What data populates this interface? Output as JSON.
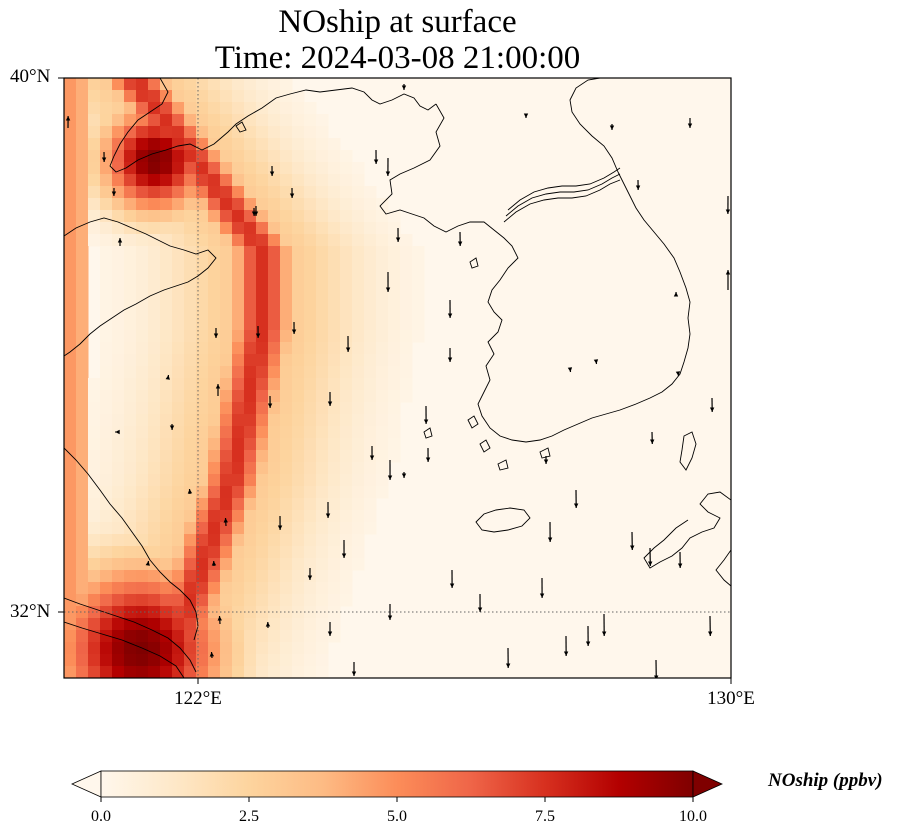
{
  "title": {
    "line1": "NOship at surface",
    "line2": "Time: 2024-03-08 21:00:00"
  },
  "axes": {
    "lat_ticks": [
      "40°N",
      "32°N"
    ],
    "lon_ticks": [
      "122°E",
      "130°E"
    ]
  },
  "colorbar": {
    "label": "NOship (ppbv)",
    "ticks": [
      "0.0",
      "2.5",
      "5.0",
      "7.5",
      "10.0"
    ],
    "min": 0,
    "max": 10,
    "extend": "both",
    "colormap": "OrRd",
    "colors": [
      "#fff7ec",
      "#fee8c8",
      "#fdd49e",
      "#fdbb84",
      "#fc8d59",
      "#ef6548",
      "#d7301f",
      "#b30000",
      "#7f0000"
    ]
  },
  "map": {
    "lon_range": [
      120,
      130
    ],
    "lat_range": [
      31,
      40
    ],
    "gridlines": {
      "lon": 122,
      "lat": 32
    },
    "field_description_levels": {
      "low": 0.2,
      "band": 7.5,
      "high": 10
    },
    "coastline_color": "#000000",
    "wind_vectors": "black arrows, predominantly southward"
  }
}
